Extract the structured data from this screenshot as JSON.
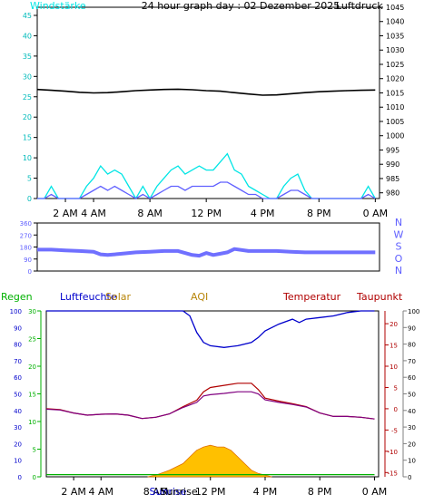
{
  "chart_data": [
    {
      "type": "line",
      "title": "24 hour graph day : 02 Dezember 2025",
      "left_axis": {
        "label": "Windstärke",
        "range": [
          0,
          47
        ],
        "ticks": [
          "0",
          "5",
          "10",
          "15",
          "20",
          "25",
          "30",
          "35",
          "40",
          "45"
        ]
      },
      "right_axis": {
        "label": "Luftdruck",
        "range": [
          978,
          1045
        ],
        "ticks": [
          "980",
          "985",
          "990",
          "995",
          "1000",
          "1005",
          "1010",
          "1015",
          "1020",
          "1025",
          "1030",
          "1035",
          "1040",
          "1045"
        ]
      },
      "x_ticks": [
        "2 AM",
        "4 AM",
        "8 AM",
        "12 PM",
        "4 PM",
        "8 PM",
        "0 AM"
      ],
      "x_tick_hours": [
        2,
        4,
        8,
        12,
        16,
        20,
        24
      ],
      "x_range_hours": [
        0,
        24.3
      ],
      "series": [
        {
          "color": "#000000",
          "axis": "right",
          "x_hours": [
            0,
            1,
            2,
            3,
            4,
            5,
            6,
            7,
            8,
            9,
            10,
            11,
            12,
            13,
            14,
            15,
            16,
            17,
            18,
            19,
            20,
            21,
            22,
            23,
            24
          ],
          "values": [
            1016.2,
            1015.9,
            1015.6,
            1015.2,
            1015.0,
            1015.1,
            1015.4,
            1015.8,
            1016.0,
            1016.2,
            1016.3,
            1016.1,
            1015.8,
            1015.6,
            1015.1,
            1014.6,
            1014.2,
            1014.3,
            1014.7,
            1015.1,
            1015.4,
            1015.6,
            1015.8,
            1015.9,
            1016.0
          ]
        },
        {
          "color": "#00e5e5",
          "axis": "left",
          "style": "gusts",
          "x_hours": [
            0,
            0.5,
            1,
            1.5,
            2,
            2.5,
            3,
            3.5,
            4,
            4.5,
            5,
            5.5,
            6,
            6.5,
            7,
            7.5,
            8,
            8.5,
            9,
            9.5,
            10,
            10.5,
            11,
            11.5,
            12,
            12.5,
            13,
            13.5,
            14,
            14.5,
            15,
            15.5,
            16,
            16.5,
            17,
            17.5,
            18,
            18.5,
            19,
            19.5,
            20,
            20.5,
            21,
            21.5,
            22,
            22.5,
            23,
            23.5,
            24
          ],
          "values": [
            0,
            0,
            3,
            0,
            0,
            0,
            0,
            3,
            5,
            8,
            6,
            7,
            6,
            3,
            0,
            3,
            0,
            3,
            5,
            7,
            8,
            6,
            7,
            8,
            7,
            7,
            9,
            11,
            7,
            6,
            3,
            2,
            1,
            0,
            0,
            3,
            5,
            6,
            2,
            0,
            0,
            0,
            0,
            0,
            0,
            0,
            0,
            3,
            0
          ]
        },
        {
          "color": "#6060ff",
          "axis": "left",
          "x_hours": [
            0,
            0.5,
            1,
            1.5,
            2,
            2.5,
            3,
            3.5,
            4,
            4.5,
            5,
            5.5,
            6,
            6.5,
            7,
            7.5,
            8,
            8.5,
            9,
            9.5,
            10,
            10.5,
            11,
            11.5,
            12,
            12.5,
            13,
            13.5,
            14,
            14.5,
            15,
            15.5,
            16,
            16.5,
            17,
            17.5,
            18,
            18.5,
            19,
            19.5,
            20,
            20.5,
            21,
            21.5,
            22,
            22.5,
            23,
            23.5,
            24
          ],
          "values": [
            0,
            0,
            1,
            0,
            0,
            0,
            0,
            1,
            2,
            3,
            2,
            3,
            2,
            1,
            0,
            1,
            0,
            1,
            2,
            3,
            3,
            2,
            3,
            3,
            3,
            3,
            4,
            4,
            3,
            2,
            1,
            1,
            0,
            0,
            0,
            1,
            2,
            2,
            1,
            0,
            0,
            0,
            0,
            0,
            0,
            0,
            0,
            1,
            0
          ]
        }
      ]
    },
    {
      "type": "line",
      "y_ticks": [
        "360",
        "270",
        "180",
        "90",
        "0"
      ],
      "y_range": [
        0,
        360
      ],
      "compass": [
        "N",
        "W",
        "S",
        "O",
        "N"
      ],
      "x_range_hours": [
        0,
        24.3
      ],
      "series": [
        {
          "color": "#7070ff",
          "x_hours": [
            0,
            1,
            2,
            3,
            4,
            4.5,
            5,
            6,
            7,
            8,
            9,
            10,
            11,
            11.5,
            12,
            12.5,
            13,
            13.5,
            14,
            15,
            16,
            17,
            18,
            19,
            20,
            21,
            22,
            23,
            24
          ],
          "values": [
            160,
            160,
            155,
            150,
            145,
            125,
            120,
            130,
            140,
            145,
            150,
            150,
            120,
            115,
            135,
            120,
            130,
            140,
            165,
            150,
            150,
            150,
            145,
            140,
            140,
            140,
            140,
            140,
            140
          ]
        }
      ]
    },
    {
      "type": "line",
      "labels": {
        "regen": "Regen",
        "luftfeuchte": "Luftfeuchte",
        "solar": "Solar",
        "aqi": "AQI",
        "temperatur": "Temperatur",
        "taupunkt": "Taupunkt"
      },
      "left_axis_blue": {
        "range": [
          0,
          100
        ],
        "ticks": [
          "0",
          "10",
          "20",
          "30",
          "40",
          "50",
          "60",
          "70",
          "80",
          "90",
          "100"
        ]
      },
      "left_axis_green": {
        "range": [
          0,
          30
        ],
        "ticks": [
          "0",
          "5",
          "10",
          "15",
          "20",
          "25",
          "30"
        ]
      },
      "right_axis_red": {
        "range": [
          -16,
          23
        ],
        "ticks": [
          "-15",
          "-10",
          "-5",
          "0",
          "5",
          "10",
          "15",
          "20"
        ]
      },
      "right_axis_gray": {
        "range": [
          0,
          100
        ],
        "ticks": [
          "0",
          "10",
          "20",
          "30",
          "40",
          "50",
          "60",
          "70",
          "80",
          "90",
          "100"
        ]
      },
      "x_ticks": [
        "2 AM",
        "4 AM",
        "8 AM",
        "12 PM",
        "4 PM",
        "8 PM",
        "0 AM"
      ],
      "x_tick_hours": [
        2,
        4,
        8,
        12,
        16,
        20,
        24
      ],
      "x_range_hours": [
        0,
        24.3
      ],
      "annotations": [
        {
          "text": "Sunrise",
          "hour": 8.9
        },
        {
          "text": "Sunrise",
          "hour": 9.7
        }
      ],
      "series": [
        {
          "name": "Luftfeuchte",
          "color": "#0000cc",
          "axis": "left_blue",
          "x_hours": [
            0,
            1,
            2,
            3,
            4,
            5,
            6,
            7,
            8,
            9,
            10,
            10.5,
            11,
            11.5,
            12,
            13,
            14,
            15,
            15.5,
            16,
            17,
            18,
            18.5,
            19,
            20,
            21,
            22,
            23,
            24
          ],
          "values": [
            100,
            100,
            100,
            100,
            100,
            100,
            100,
            100,
            100,
            100,
            100,
            97,
            87,
            81,
            79,
            78,
            79,
            81,
            84,
            88,
            92,
            95,
            93,
            95,
            96,
            97,
            99,
            100,
            100
          ]
        },
        {
          "name": "Temperatur",
          "color": "#b00000",
          "axis": "right_red",
          "x_hours": [
            0,
            1,
            2,
            3,
            4,
            5,
            6,
            7,
            8,
            9,
            10,
            11,
            11.5,
            12,
            13,
            14,
            15,
            15.5,
            16,
            17,
            18,
            19,
            20,
            21,
            22,
            23,
            24
          ],
          "values": [
            0,
            -0.2,
            -1,
            -1.5,
            -1.3,
            -1.2,
            -1.5,
            -2.3,
            -2,
            -1.2,
            0.5,
            2,
            4,
            5,
            5.5,
            6,
            6,
            4.5,
            2.5,
            1.8,
            1.2,
            0.5,
            -1,
            -1.8,
            -1.8,
            -2,
            -2.4
          ]
        },
        {
          "name": "Taupunkt",
          "color": "#800080",
          "axis": "right_red",
          "x_hours": [
            0,
            1,
            2,
            3,
            4,
            5,
            6,
            7,
            8,
            9,
            10,
            11,
            11.5,
            12,
            13,
            14,
            15,
            15.5,
            16,
            17,
            18,
            19,
            20,
            21,
            22,
            23,
            24
          ],
          "values": [
            -0.1,
            -0.3,
            -1,
            -1.5,
            -1.3,
            -1.2,
            -1.5,
            -2.3,
            -2,
            -1.2,
            0.3,
            1.5,
            3,
            3.3,
            3.6,
            4,
            4,
            3.5,
            2.1,
            1.5,
            1,
            0.4,
            -1,
            -1.8,
            -1.8,
            -2,
            -2.4
          ]
        },
        {
          "name": "Solar",
          "color": "#ffc000",
          "axis": "right_gray",
          "x_hours": [
            7.4,
            8,
            9,
            10,
            10.5,
            11,
            11.5,
            12,
            12.5,
            13,
            13.5,
            14,
            14.5,
            15,
            15.5,
            16,
            16.5
          ],
          "values": [
            0,
            1,
            4,
            8,
            12,
            16,
            18,
            19,
            18,
            18,
            16,
            12,
            8,
            4,
            2,
            1,
            0
          ]
        },
        {
          "name": "Regen",
          "color": "#00b000",
          "axis": "left_green",
          "x_hours": [
            0,
            24
          ],
          "values": [
            0.4,
            0.4
          ]
        }
      ]
    }
  ]
}
